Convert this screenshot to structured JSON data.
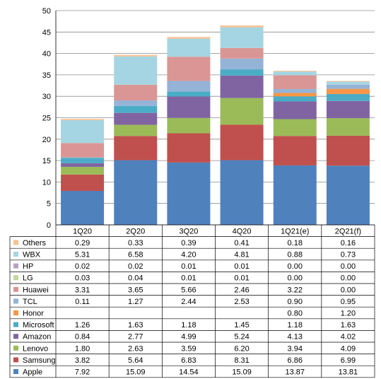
{
  "chart_data": {
    "type": "bar",
    "stacked": true,
    "title": "",
    "xlabel": "",
    "ylabel": "",
    "ylim": [
      0,
      50
    ],
    "yticks": [
      0,
      5,
      10,
      15,
      20,
      25,
      30,
      35,
      40,
      45,
      50
    ],
    "grid": true,
    "legend_placement": "data-table-left",
    "categories": [
      "1Q20",
      "2Q20",
      "3Q20",
      "4Q20",
      "1Q21(e)",
      "2Q21(f)"
    ],
    "series": [
      {
        "name": "Apple",
        "color": "#4f81bd",
        "values": [
          "7.92",
          "15.09",
          "14.54",
          "15.09",
          "13.87",
          "13.81"
        ]
      },
      {
        "name": "Samsung",
        "color": "#c0504d",
        "values": [
          "3.82",
          "5.64",
          "6.83",
          "8.31",
          "6.86",
          "6.99"
        ]
      },
      {
        "name": "Lenovo",
        "color": "#9bbb59",
        "values": [
          "1.80",
          "2.63",
          "3.59",
          "6.20",
          "3.94",
          "4.09"
        ]
      },
      {
        "name": "Amazon",
        "color": "#8064a2",
        "values": [
          "0.84",
          "2.77",
          "4.99",
          "5.24",
          "4.13",
          "4.02"
        ]
      },
      {
        "name": "Microsoft",
        "color": "#4bacc6",
        "values": [
          "1.26",
          "1.63",
          "1.18",
          "1.45",
          "1.18",
          "1.63"
        ]
      },
      {
        "name": "Honor",
        "color": "#f79646",
        "values": [
          "",
          "",
          "",
          "",
          "0.80",
          "1.20"
        ]
      },
      {
        "name": "TCL",
        "color": "#95b3d7",
        "values": [
          "0.11",
          "1.27",
          "2.44",
          "2.53",
          "0.90",
          "0.95"
        ]
      },
      {
        "name": "Huawei",
        "color": "#da9694",
        "values": [
          "3.31",
          "3.65",
          "5.66",
          "2.46",
          "3.22",
          "0.00"
        ]
      },
      {
        "name": "LG",
        "color": "#c3d69b",
        "values": [
          "0.03",
          "0.04",
          "0.01",
          "0.01",
          "0.00",
          "0.00"
        ]
      },
      {
        "name": "HP",
        "color": "#b3a2c7",
        "values": [
          "0.02",
          "0.02",
          "0.01",
          "0.01",
          "0.00",
          "0.00"
        ]
      },
      {
        "name": "WBX",
        "color": "#a5d5e2",
        "values": [
          "5.31",
          "6.58",
          "4.20",
          "4.81",
          "0.88",
          "0.73"
        ]
      },
      {
        "name": "Others",
        "color": "#fac090",
        "values": [
          "0.29",
          "0.33",
          "0.39",
          "0.41",
          "0.18",
          "0.16"
        ]
      }
    ]
  }
}
